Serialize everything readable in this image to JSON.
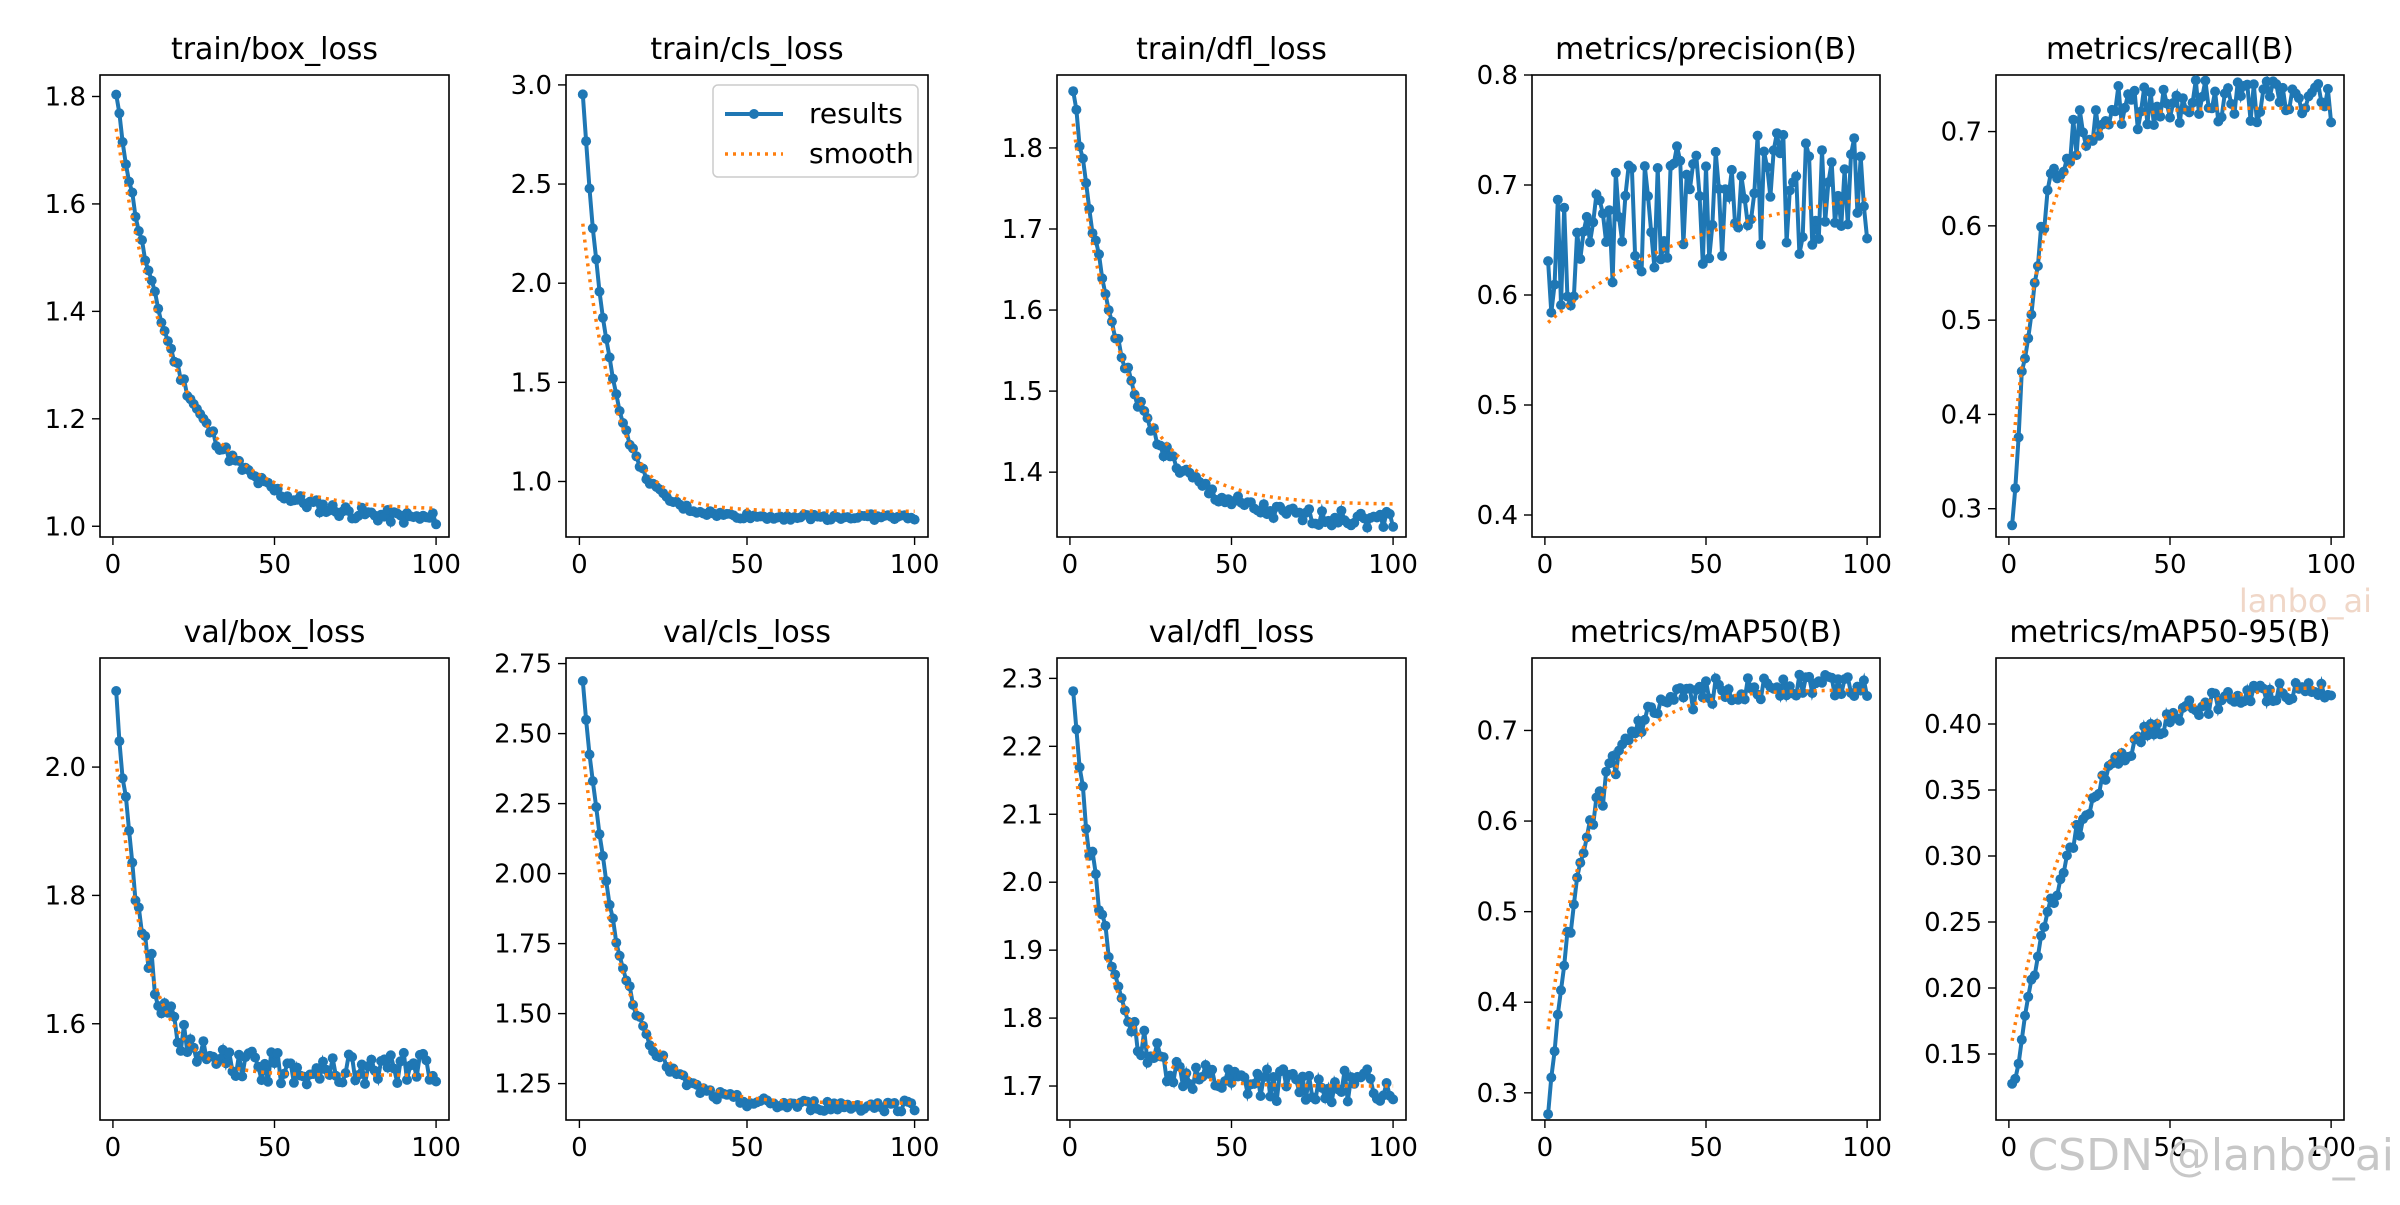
{
  "watermarks": {
    "top": "lanbo_ai",
    "bottom": "CSDN @lanbo_ai"
  },
  "colors": {
    "results": "#1f77b4",
    "smooth": "#ff7f0e",
    "axis": "#000000",
    "background": "#ffffff"
  },
  "chart_data": [
    {
      "type": "line",
      "title": "train/box_loss",
      "xlim": [
        -4,
        104
      ],
      "ylim": [
        0.98,
        1.84
      ],
      "xticks": [
        0,
        50,
        100
      ],
      "xtick_labels": [
        "0",
        "50",
        "100"
      ],
      "yticks": [
        1.0,
        1.2,
        1.4,
        1.6,
        1.8
      ],
      "ytick_labels": [
        "1.0",
        "1.2",
        "1.4",
        "1.6",
        "1.8"
      ],
      "legend": null,
      "series": [
        {
          "name": "results",
          "shape": "decay",
          "start": 1.8,
          "end": 1.01,
          "k": 0.05,
          "linear": 0.0,
          "noise": 0.012
        },
        {
          "name": "smooth",
          "shape": "decay",
          "start": 1.74,
          "end": 1.03,
          "k": 0.05,
          "linear": 0.0,
          "noise": 0.0
        }
      ]
    },
    {
      "type": "line",
      "title": "train/cls_loss",
      "xlim": [
        -4,
        104
      ],
      "ylim": [
        0.72,
        3.05
      ],
      "xticks": [
        0,
        50,
        100
      ],
      "xtick_labels": [
        "0",
        "50",
        "100"
      ],
      "yticks": [
        1.0,
        1.5,
        2.0,
        2.5,
        3.0
      ],
      "ytick_labels": [
        "1.0",
        "1.5",
        "2.0",
        "2.5",
        "3.0"
      ],
      "legend": {
        "entries": [
          "results",
          "smooth"
        ],
        "position": "upper right"
      },
      "series": [
        {
          "name": "results",
          "shape": "decay",
          "start": 2.95,
          "end": 0.82,
          "k": 0.12,
          "linear": 0.0,
          "noise": 0.015
        },
        {
          "name": "smooth",
          "shape": "decay",
          "start": 2.3,
          "end": 0.85,
          "k": 0.1,
          "linear": 0.0,
          "noise": 0.0
        }
      ]
    },
    {
      "type": "line",
      "title": "train/dfl_loss",
      "xlim": [
        -4,
        104
      ],
      "ylim": [
        1.32,
        1.89
      ],
      "xticks": [
        0,
        50,
        100
      ],
      "xtick_labels": [
        "0",
        "50",
        "100"
      ],
      "yticks": [
        1.4,
        1.5,
        1.6,
        1.7,
        1.8
      ],
      "ytick_labels": [
        "1.4",
        "1.5",
        "1.6",
        "1.7",
        "1.8"
      ],
      "legend": null,
      "series": [
        {
          "name": "results",
          "shape": "decay",
          "start": 1.87,
          "end": 1.34,
          "k": 0.06,
          "linear": 0.0,
          "noise": 0.01
        },
        {
          "name": "smooth",
          "shape": "decay",
          "start": 1.83,
          "end": 1.36,
          "k": 0.06,
          "linear": 0.0,
          "noise": 0.0
        }
      ]
    },
    {
      "type": "line",
      "title": "metrics/precision(B)",
      "xlim": [
        -4,
        104
      ],
      "ylim": [
        0.38,
        0.8
      ],
      "xticks": [
        0,
        50,
        100
      ],
      "xtick_labels": [
        "0",
        "50",
        "100"
      ],
      "yticks": [
        0.4,
        0.5,
        0.6,
        0.7,
        0.8
      ],
      "ytick_labels": [
        "0.4",
        "0.5",
        "0.6",
        "0.7",
        "0.8"
      ],
      "legend": null,
      "series": [
        {
          "name": "results",
          "shape": "rise",
          "start": 0.64,
          "end": 0.71,
          "k": 0.02,
          "linear": 0.0,
          "noise": 0.06
        },
        {
          "name": "smooth",
          "shape": "rise",
          "start": 0.575,
          "end": 0.705,
          "k": 0.02,
          "linear": 0.0,
          "noise": 0.0
        }
      ]
    },
    {
      "type": "line",
      "title": "metrics/recall(B)",
      "xlim": [
        -4,
        104
      ],
      "ylim": [
        0.27,
        0.76
      ],
      "xticks": [
        0,
        50,
        100
      ],
      "xtick_labels": [
        "0",
        "50",
        "100"
      ],
      "yticks": [
        0.3,
        0.4,
        0.5,
        0.6,
        0.7
      ],
      "ytick_labels": [
        "0.3",
        "0.4",
        "0.5",
        "0.6",
        "0.7"
      ],
      "legend": null,
      "series": [
        {
          "name": "results",
          "shape": "rise",
          "start": 0.29,
          "end": 0.73,
          "k": 0.13,
          "linear": 0.0,
          "noise": 0.025
        },
        {
          "name": "smooth",
          "shape": "rise",
          "start": 0.355,
          "end": 0.725,
          "k": 0.1,
          "linear": 0.0,
          "noise": 0.0
        }
      ]
    },
    {
      "type": "line",
      "title": "val/box_loss",
      "xlim": [
        -4,
        104
      ],
      "ylim": [
        1.45,
        2.17
      ],
      "xticks": [
        0,
        50,
        100
      ],
      "xtick_labels": [
        "0",
        "50",
        "100"
      ],
      "yticks": [
        1.6,
        1.8,
        2.0
      ],
      "ytick_labels": [
        "1.6",
        "1.8",
        "2.0"
      ],
      "legend": null,
      "series": [
        {
          "name": "results",
          "shape": "decay",
          "start": 2.13,
          "end": 1.53,
          "k": 0.12,
          "linear": 0.0,
          "noise": 0.025
        },
        {
          "name": "smooth",
          "shape": "decay",
          "start": 2.01,
          "end": 1.52,
          "k": 0.1,
          "linear": 0.0,
          "noise": 0.0
        }
      ]
    },
    {
      "type": "line",
      "title": "val/cls_loss",
      "xlim": [
        -4,
        104
      ],
      "ylim": [
        1.12,
        2.77
      ],
      "xticks": [
        0,
        50,
        100
      ],
      "xtick_labels": [
        "0",
        "50",
        "100"
      ],
      "yticks": [
        1.25,
        1.5,
        1.75,
        2.0,
        2.25,
        2.5,
        2.75
      ],
      "ytick_labels": [
        "1.25",
        "1.50",
        "1.75",
        "2.00",
        "2.25",
        "2.50",
        "2.75"
      ],
      "legend": null,
      "series": [
        {
          "name": "results",
          "shape": "decay",
          "start": 2.7,
          "end": 1.17,
          "k": 0.09,
          "linear": 0.0,
          "noise": 0.02
        },
        {
          "name": "smooth",
          "shape": "decay",
          "start": 2.44,
          "end": 1.18,
          "k": 0.08,
          "linear": 0.0,
          "noise": 0.0
        }
      ]
    },
    {
      "type": "line",
      "title": "val/dfl_loss",
      "xlim": [
        -4,
        104
      ],
      "ylim": [
        1.65,
        2.33
      ],
      "xticks": [
        0,
        50,
        100
      ],
      "xtick_labels": [
        "0",
        "50",
        "100"
      ],
      "yticks": [
        1.7,
        1.8,
        1.9,
        2.0,
        2.1,
        2.2,
        2.3
      ],
      "ytick_labels": [
        "1.7",
        "1.8",
        "1.9",
        "2.0",
        "2.1",
        "2.2",
        "2.3"
      ],
      "legend": null,
      "series": [
        {
          "name": "results",
          "shape": "decay",
          "start": 2.3,
          "end": 1.7,
          "k": 0.1,
          "linear": 0.0,
          "noise": 0.025
        },
        {
          "name": "smooth",
          "shape": "decay",
          "start": 2.2,
          "end": 1.7,
          "k": 0.09,
          "linear": 0.0,
          "noise": 0.0
        }
      ]
    },
    {
      "type": "line",
      "title": "metrics/mAP50(B)",
      "xlim": [
        -4,
        104
      ],
      "ylim": [
        0.27,
        0.78
      ],
      "xticks": [
        0,
        50,
        100
      ],
      "xtick_labels": [
        "0",
        "50",
        "100"
      ],
      "yticks": [
        0.3,
        0.4,
        0.5,
        0.6,
        0.7
      ],
      "ytick_labels": [
        "0.3",
        "0.4",
        "0.5",
        "0.6",
        "0.7"
      ],
      "legend": null,
      "series": [
        {
          "name": "results",
          "shape": "rise",
          "start": 0.29,
          "end": 0.75,
          "k": 0.08,
          "linear": 0.0,
          "noise": 0.015
        },
        {
          "name": "smooth",
          "shape": "rise",
          "start": 0.37,
          "end": 0.745,
          "k": 0.07,
          "linear": 0.0,
          "noise": 0.0
        }
      ]
    },
    {
      "type": "line",
      "title": "metrics/mAP50-95(B)",
      "xlim": [
        -4,
        104
      ],
      "ylim": [
        0.1,
        0.45
      ],
      "xticks": [
        0,
        50,
        100
      ],
      "xtick_labels": [
        "0",
        "50",
        "100"
      ],
      "yticks": [
        0.15,
        0.2,
        0.25,
        0.3,
        0.35,
        0.4
      ],
      "ytick_labels": [
        "0.15",
        "0.20",
        "0.25",
        "0.30",
        "0.35",
        "0.40"
      ],
      "legend": null,
      "series": [
        {
          "name": "results",
          "shape": "rise",
          "start": 0.12,
          "end": 0.43,
          "k": 0.05,
          "linear": 0.0,
          "noise": 0.008
        },
        {
          "name": "smooth",
          "shape": "rise",
          "start": 0.16,
          "end": 0.43,
          "k": 0.05,
          "linear": 0.0,
          "noise": 0.0
        }
      ]
    }
  ]
}
